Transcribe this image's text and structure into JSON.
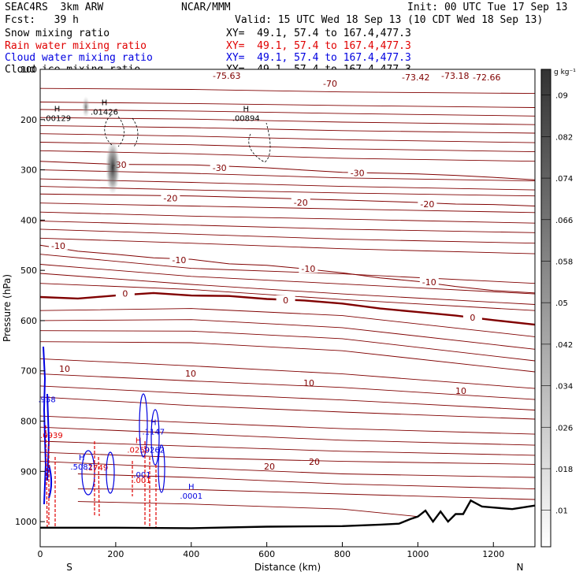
{
  "header": {
    "model": "SEAC4RS  3km ARW",
    "center": "NCAR/MMM",
    "init": "Init: 00 UTC Tue 17 Sep 13",
    "fcst": "Fcst:   39 h",
    "valid": "Valid: 15 UTC Wed 18 Sep 13 (10 CDT Wed 18 Sep 13)",
    "fields": [
      {
        "name": "Snow mixing ratio",
        "xy": "XY=  49.1, 57.4 to 167.4,477.3",
        "color": "#000000"
      },
      {
        "name": "Rain water mixing ratio",
        "xy": "XY=  49.1, 57.4 to 167.4,477.3",
        "color": "#e00000"
      },
      {
        "name": "Cloud water mixing ratio",
        "xy": "XY=  49.1, 57.4 to 167.4,477.3",
        "color": "#0000e0"
      },
      {
        "name": "Cloud ice mixing ratio",
        "xy": "XY=  49.1, 57.4 to 167.4,477.3",
        "color": "#000000"
      }
    ]
  },
  "chart_data": {
    "type": "cross-section",
    "xlabel": "Distance (km)",
    "ylabel": "Pressure (hPa)",
    "xlim": [
      0,
      1310
    ],
    "ylim": [
      1050,
      100
    ],
    "xticks": [
      0,
      200,
      400,
      600,
      800,
      1000,
      1200
    ],
    "yticks": [
      100,
      200,
      300,
      400,
      500,
      600,
      700,
      800,
      900,
      1000
    ],
    "ytick_labels": [
      "100",
      "200",
      "300",
      "400",
      "500",
      "600",
      "700",
      "800",
      "900",
      "1000"
    ],
    "endpoints": {
      "left": "S",
      "right": "N"
    },
    "colorbar": {
      "unit": "g kg⁻¹",
      "levels": [
        ".01",
        ".018",
        ".026",
        ".034",
        ".042",
        ".05",
        ".058",
        ".066",
        ".074",
        ".082",
        ".09"
      ]
    },
    "temperature_contours": [
      {
        "label": "0",
        "points": [
          [
            0,
            553
          ],
          [
            100,
            556
          ],
          [
            200,
            550
          ],
          [
            300,
            545
          ],
          [
            400,
            550
          ],
          [
            500,
            551
          ],
          [
            600,
            557
          ],
          [
            700,
            560
          ],
          [
            800,
            566
          ],
          [
            900,
            576
          ],
          [
            1000,
            583
          ],
          [
            1100,
            590
          ],
          [
            1200,
            599
          ],
          [
            1310,
            608
          ]
        ],
        "bold": true,
        "label_positions": [
          [
            225,
            546
          ],
          [
            650,
            559
          ],
          [
            1145,
            594
          ]
        ]
      },
      {
        "label": "-10",
        "points": [
          [
            0,
            450
          ],
          [
            100,
            462
          ],
          [
            200,
            468
          ],
          [
            300,
            475
          ],
          [
            400,
            478
          ],
          [
            500,
            487
          ],
          [
            600,
            490
          ],
          [
            700,
            497
          ],
          [
            800,
            505
          ],
          [
            900,
            515
          ],
          [
            1000,
            522
          ],
          [
            1100,
            532
          ],
          [
            1200,
            540
          ],
          [
            1310,
            545
          ]
        ],
        "label_positions": [
          [
            48,
            451
          ],
          [
            368,
            479
          ],
          [
            710,
            497
          ],
          [
            1030,
            523
          ]
        ]
      },
      {
        "label": "-20",
        "points": [
          [
            0,
            348
          ],
          [
            200,
            350
          ],
          [
            400,
            352
          ],
          [
            600,
            356
          ],
          [
            800,
            360
          ],
          [
            1000,
            365
          ],
          [
            1100,
            368
          ],
          [
            1200,
            369
          ],
          [
            1310,
            372
          ]
        ],
        "label_positions": [
          [
            345,
            356
          ],
          [
            690,
            365
          ],
          [
            1025,
            368
          ]
        ]
      },
      {
        "label": "-30",
        "points": [
          [
            0,
            283
          ],
          [
            200,
            289
          ],
          [
            400,
            290
          ],
          [
            600,
            296
          ],
          [
            800,
            305
          ],
          [
            1000,
            308
          ],
          [
            1100,
            311
          ],
          [
            1200,
            315
          ],
          [
            1310,
            320
          ]
        ],
        "label_positions": [
          [
            210,
            290
          ],
          [
            475,
            296
          ],
          [
            840,
            306
          ]
        ]
      }
    ],
    "temperature_labels": [
      "-75.63",
      "-70",
      "-73.42",
      "-73.18",
      "-72.66",
      "-30",
      "-30",
      "-30",
      "-20",
      "-20",
      "-20",
      "-20",
      "-10",
      "-10",
      "-10",
      "-10",
      "-10",
      "0",
      "0",
      "0",
      "10",
      "10",
      "10",
      "10",
      "20",
      "20"
    ],
    "maxima_labels": [
      {
        "text": "H",
        "value": ".00129",
        "x": 45,
        "p": 203,
        "color": "#000000"
      },
      {
        "text": "H",
        "value": ".01426",
        "x": 170,
        "p": 190,
        "color": "#000000"
      },
      {
        "text": "H",
        "value": ".00894",
        "x": 545,
        "p": 203,
        "color": "#000000"
      },
      {
        "text": "H",
        "value": ".0001",
        "x": 400,
        "p": 954,
        "color": "#0000e0"
      },
      {
        "text": "",
        "value": ".958",
        "x": 18,
        "p": 762,
        "color": "#0000e0"
      },
      {
        "text": "",
        "value": ".0939",
        "x": 30,
        "p": 834,
        "color": "#e00000"
      },
      {
        "text": "H",
        "value": ".1147",
        "x": 300,
        "p": 827,
        "color": "#0000e0"
      },
      {
        "text": "H",
        "value": ".0259",
        "x": 260,
        "p": 863,
        "color": "#e00000"
      },
      {
        "text": "",
        "value": ".0262",
        "x": 300,
        "p": 863,
        "color": "#0000e0"
      },
      {
        "text": "H",
        "value": ".5082",
        "x": 110,
        "p": 896,
        "color": "#0000e0"
      },
      {
        "text": "",
        "value": ".1749",
        "x": 150,
        "p": 898,
        "color": "#e00000"
      },
      {
        "text": "",
        "value": ".001",
        "x": 270,
        "p": 912,
        "color": "#0000e0"
      },
      {
        "text": "",
        "value": ".001",
        "x": 270,
        "p": 923,
        "color": "#e00000"
      }
    ],
    "colors": {
      "isotherm": "#800000",
      "terrain": "#000000",
      "rain": "#e00000",
      "cloud_water": "#0000e0",
      "snow_ice": "#000000"
    }
  }
}
